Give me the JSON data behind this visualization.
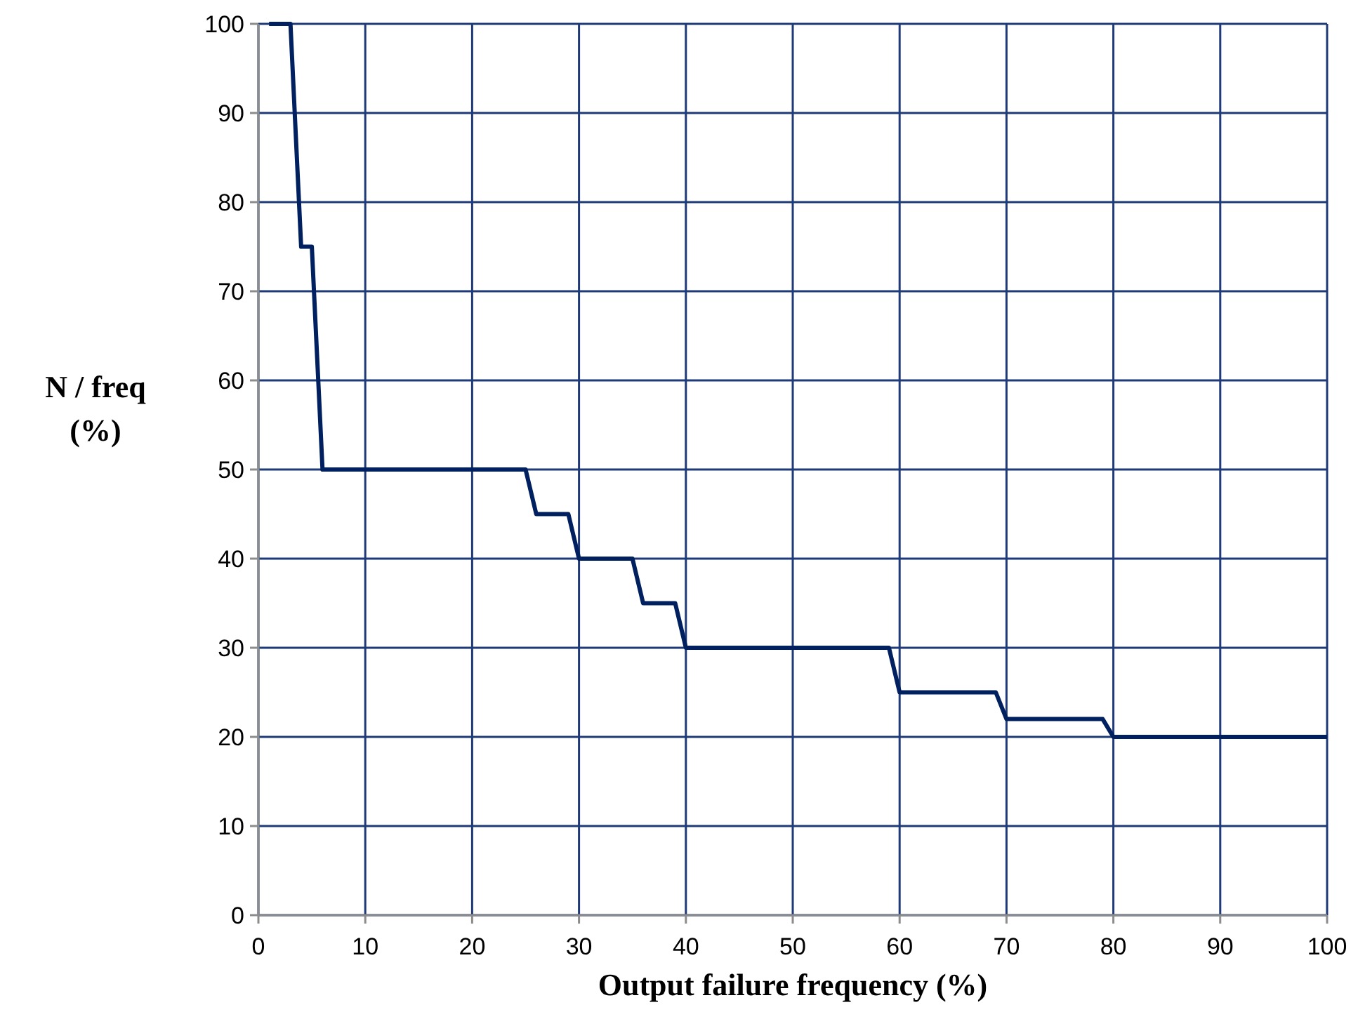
{
  "chart_data": {
    "type": "line",
    "xlabel": "Output failure frequency (%)",
    "ylabel": "N / freq (%)",
    "xlim": [
      0,
      100
    ],
    "ylim": [
      0,
      100
    ],
    "xticks": [
      0,
      10,
      20,
      30,
      40,
      50,
      60,
      70,
      80,
      90,
      100
    ],
    "yticks": [
      0,
      10,
      20,
      30,
      40,
      50,
      60,
      70,
      80,
      90,
      100
    ],
    "grid": true,
    "marker": "none",
    "line_style": "solid",
    "series": [
      {
        "color": "#002060",
        "x": [
          1,
          3,
          4,
          5,
          6,
          25,
          26,
          29,
          30,
          35,
          36,
          39,
          40,
          59,
          60,
          69,
          70,
          79,
          80,
          100
        ],
        "values": [
          100,
          100,
          75,
          75,
          50,
          50,
          45,
          45,
          40,
          40,
          35,
          35,
          30,
          30,
          25,
          25,
          22,
          22,
          20,
          20
        ]
      }
    ]
  }
}
